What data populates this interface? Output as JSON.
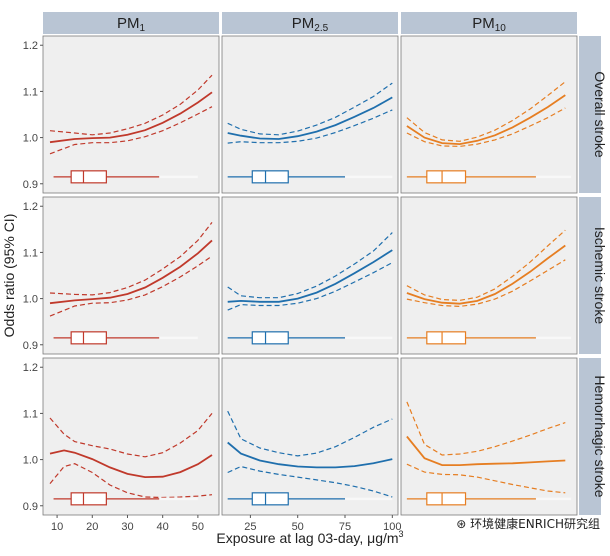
{
  "chart_data": {
    "type": "line",
    "ylabel": "Odds ratio (95% CI)",
    "xlabel": "Exposure at lag 03-day, μg/m³",
    "ylim": [
      0.88,
      1.22
    ],
    "yticks": [
      0.9,
      1.0,
      1.1,
      1.2
    ],
    "grid": false,
    "columns": [
      {
        "label": "PM1",
        "xlim": [
          6,
          56
        ],
        "xticks": [
          10,
          20,
          30,
          40,
          50
        ],
        "color": "#c0392b",
        "box": {
          "whisker_low": 9,
          "q1": 14,
          "median": 17.5,
          "q3": 24,
          "whisker_high": 39,
          "max": 50
        }
      },
      {
        "label": "PM2.5",
        "xlim": [
          10,
          103
        ],
        "xticks": [
          25,
          50,
          75,
          100
        ],
        "color": "#1f6fad",
        "box": {
          "whisker_low": 13,
          "q1": 26,
          "median": 33,
          "q3": 45,
          "whisker_high": 75,
          "max": 100
        }
      },
      {
        "label": "PM10",
        "xlim": [
          20,
          170
        ],
        "xticks": [],
        "color": "#e67e22",
        "box": {
          "whisker_low": 25,
          "q1": 42,
          "median": 55,
          "q3": 75,
          "whisker_high": 135,
          "max": 165
        }
      }
    ],
    "rows": [
      {
        "label": "Overall stroke"
      },
      {
        "label": "Ischemic stroke"
      },
      {
        "label": "Hemorrhagic stroke"
      }
    ],
    "panels": [
      {
        "row": 0,
        "col": 0,
        "x": [
          8,
          15,
          20,
          25,
          30,
          35,
          40,
          45,
          50,
          54
        ],
        "y": [
          0.99,
          0.997,
          0.999,
          1.0,
          1.006,
          1.016,
          1.032,
          1.052,
          1.076,
          1.098
        ],
        "lower": [
          0.965,
          0.985,
          0.989,
          0.989,
          0.993,
          1.002,
          1.015,
          1.032,
          1.051,
          1.067
        ],
        "upper": [
          1.015,
          1.01,
          1.006,
          1.01,
          1.019,
          1.031,
          1.049,
          1.072,
          1.103,
          1.135
        ]
      },
      {
        "row": 0,
        "col": 1,
        "x": [
          13,
          20,
          30,
          40,
          50,
          60,
          70,
          80,
          90,
          100
        ],
        "y": [
          1.01,
          1.004,
          0.998,
          0.997,
          1.003,
          1.013,
          1.027,
          1.045,
          1.064,
          1.087
        ],
        "lower": [
          0.988,
          0.991,
          0.989,
          0.989,
          0.992,
          0.999,
          1.011,
          1.026,
          1.042,
          1.06
        ],
        "upper": [
          1.031,
          1.018,
          1.008,
          1.006,
          1.014,
          1.027,
          1.044,
          1.066,
          1.089,
          1.118
        ]
      },
      {
        "row": 0,
        "col": 2,
        "x": [
          25,
          40,
          55,
          70,
          85,
          100,
          115,
          130,
          145,
          160
        ],
        "y": [
          1.025,
          1.0,
          0.988,
          0.986,
          0.993,
          1.005,
          1.022,
          1.043,
          1.066,
          1.092
        ],
        "lower": [
          1.01,
          0.991,
          0.982,
          0.981,
          0.986,
          0.995,
          1.008,
          1.025,
          1.043,
          1.064
        ],
        "upper": [
          1.043,
          1.011,
          0.995,
          0.992,
          1.001,
          1.016,
          1.037,
          1.062,
          1.091,
          1.121
        ]
      },
      {
        "row": 1,
        "col": 0,
        "x": [
          8,
          15,
          20,
          25,
          30,
          35,
          40,
          45,
          50,
          54
        ],
        "y": [
          0.99,
          0.996,
          0.999,
          1.002,
          1.01,
          1.024,
          1.045,
          1.069,
          1.098,
          1.126
        ],
        "lower": [
          0.962,
          0.984,
          0.99,
          0.991,
          0.997,
          1.008,
          1.026,
          1.047,
          1.071,
          1.092
        ],
        "upper": [
          1.012,
          1.009,
          1.008,
          1.013,
          1.024,
          1.04,
          1.064,
          1.091,
          1.126,
          1.165
        ]
      },
      {
        "row": 1,
        "col": 1,
        "x": [
          13,
          20,
          30,
          40,
          50,
          60,
          70,
          80,
          90,
          100
        ],
        "y": [
          0.993,
          0.995,
          0.993,
          0.993,
          1.0,
          1.013,
          1.032,
          1.055,
          1.079,
          1.105
        ],
        "lower": [
          0.975,
          0.987,
          0.985,
          0.985,
          0.99,
          1.0,
          1.016,
          1.036,
          1.056,
          1.078
        ],
        "upper": [
          1.025,
          1.006,
          1.002,
          1.002,
          1.011,
          1.027,
          1.049,
          1.075,
          1.103,
          1.143
        ]
      },
      {
        "row": 1,
        "col": 2,
        "x": [
          25,
          40,
          55,
          70,
          85,
          100,
          115,
          130,
          145,
          160
        ],
        "y": [
          1.012,
          0.999,
          0.991,
          0.989,
          0.995,
          1.01,
          1.032,
          1.058,
          1.087,
          1.115
        ],
        "lower": [
          0.999,
          0.991,
          0.985,
          0.983,
          0.988,
          0.999,
          1.016,
          1.038,
          1.061,
          1.084
        ],
        "upper": [
          1.028,
          1.008,
          0.998,
          0.996,
          1.003,
          1.021,
          1.048,
          1.079,
          1.114,
          1.148
        ]
      },
      {
        "row": 2,
        "col": 0,
        "x": [
          8,
          12,
          15,
          20,
          25,
          30,
          35,
          40,
          45,
          50,
          54
        ],
        "y": [
          1.013,
          1.02,
          1.015,
          1.001,
          0.983,
          0.969,
          0.962,
          0.963,
          0.973,
          0.99,
          1.01
        ],
        "lower": [
          0.948,
          0.985,
          0.991,
          0.972,
          0.945,
          0.928,
          0.919,
          0.918,
          0.919,
          0.921,
          0.924
        ],
        "upper": [
          1.09,
          1.055,
          1.039,
          1.03,
          1.023,
          1.012,
          1.006,
          1.015,
          1.036,
          1.063,
          1.1
        ]
      },
      {
        "row": 2,
        "col": 1,
        "x": [
          13,
          20,
          30,
          40,
          50,
          60,
          70,
          80,
          90,
          100
        ],
        "y": [
          1.037,
          1.013,
          0.998,
          0.99,
          0.985,
          0.983,
          0.983,
          0.986,
          0.992,
          1.001
        ],
        "lower": [
          0.972,
          0.985,
          0.975,
          0.968,
          0.962,
          0.956,
          0.95,
          0.942,
          0.932,
          0.919
        ],
        "upper": [
          1.105,
          1.045,
          1.025,
          1.015,
          1.008,
          1.014,
          1.028,
          1.048,
          1.07,
          1.088
        ]
      },
      {
        "row": 2,
        "col": 2,
        "x": [
          25,
          40,
          55,
          70,
          85,
          100,
          115,
          130,
          145,
          160
        ],
        "y": [
          1.05,
          1.003,
          0.988,
          0.988,
          0.99,
          0.991,
          0.992,
          0.994,
          0.996,
          0.998
        ],
        "lower": [
          0.99,
          0.973,
          0.968,
          0.967,
          0.962,
          0.954,
          0.946,
          0.939,
          0.932,
          0.928
        ],
        "upper": [
          1.125,
          1.033,
          1.01,
          1.012,
          1.018,
          1.028,
          1.04,
          1.053,
          1.067,
          1.08
        ]
      }
    ]
  },
  "watermark": "环境健康ENRICH研究组"
}
